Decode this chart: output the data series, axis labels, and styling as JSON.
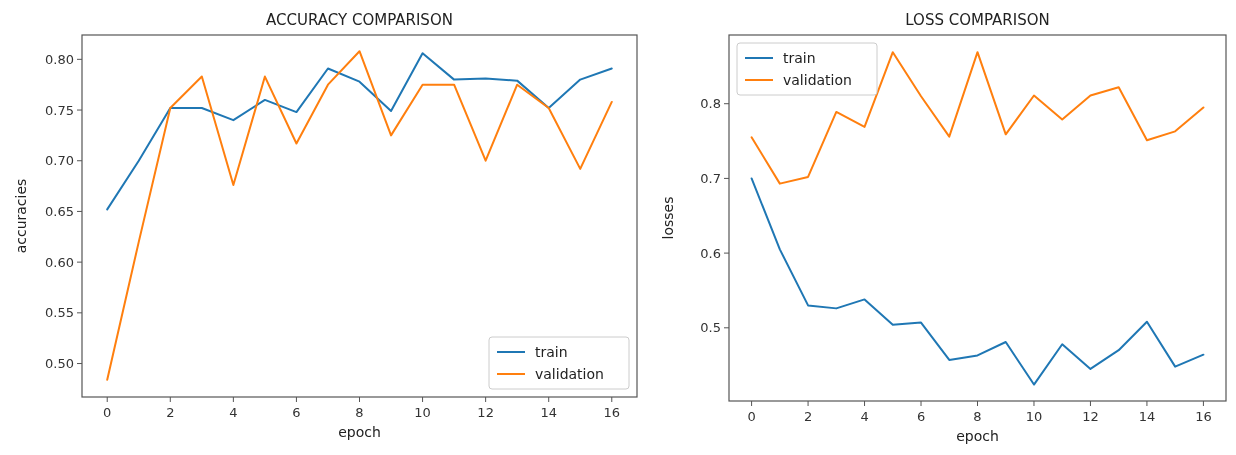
{
  "chart_data": [
    {
      "type": "line",
      "title": "ACCURACY COMPARISON",
      "xlabel": "epoch",
      "ylabel": "accuracies",
      "x": [
        0,
        1,
        2,
        3,
        4,
        5,
        6,
        7,
        8,
        9,
        10,
        11,
        12,
        13,
        14,
        15,
        16
      ],
      "xlim": [
        -0.8,
        16.8
      ],
      "xticks": [
        0,
        2,
        4,
        6,
        8,
        10,
        12,
        14,
        16
      ],
      "ylim": [
        0.467,
        0.824
      ],
      "yticks": [
        {
          "value": 0.5,
          "label": "0.50"
        },
        {
          "value": 0.55,
          "label": "0.55"
        },
        {
          "value": 0.6,
          "label": "0.60"
        },
        {
          "value": 0.65,
          "label": "0.65"
        },
        {
          "value": 0.7,
          "label": "0.70"
        },
        {
          "value": 0.75,
          "label": "0.75"
        },
        {
          "value": 0.8,
          "label": "0.80"
        }
      ],
      "legend": "bottom right",
      "series": [
        {
          "name": "train",
          "color": "#1f77b4",
          "values": [
            0.652,
            0.7,
            0.752,
            0.752,
            0.74,
            0.76,
            0.748,
            0.791,
            0.778,
            0.749,
            0.806,
            0.78,
            0.781,
            0.779,
            0.752,
            0.78,
            0.791
          ]
        },
        {
          "name": "validation",
          "color": "#ff7f0e",
          "values": [
            0.484,
            0.62,
            0.752,
            0.783,
            0.676,
            0.783,
            0.717,
            0.775,
            0.808,
            0.725,
            0.775,
            0.775,
            0.7,
            0.775,
            0.752,
            0.692,
            0.758
          ]
        }
      ]
    },
    {
      "type": "line",
      "title": "LOSS COMPARISON",
      "xlabel": "epoch",
      "ylabel": "losses",
      "x": [
        0,
        1,
        2,
        3,
        4,
        5,
        6,
        7,
        8,
        9,
        10,
        11,
        12,
        13,
        14,
        15,
        16
      ],
      "xlim": [
        -0.8,
        16.8
      ],
      "xticks": [
        0,
        2,
        4,
        6,
        8,
        10,
        12,
        14,
        16
      ],
      "ylim": [
        0.402,
        0.892
      ],
      "yticks": [
        0.5,
        0.6,
        0.7,
        0.8
      ],
      "legend": "top left",
      "series": [
        {
          "name": "train",
          "color": "#1f77b4",
          "values": [
            0.7,
            0.605,
            0.53,
            0.526,
            0.538,
            0.504,
            0.507,
            0.457,
            0.463,
            0.481,
            0.424,
            0.478,
            0.445,
            0.47,
            0.508,
            0.448,
            0.464
          ]
        },
        {
          "name": "validation",
          "color": "#ff7f0e",
          "values": [
            0.755,
            0.693,
            0.702,
            0.789,
            0.769,
            0.869,
            0.81,
            0.756,
            0.869,
            0.759,
            0.811,
            0.779,
            0.811,
            0.822,
            0.751,
            0.763,
            0.795
          ]
        }
      ]
    }
  ]
}
